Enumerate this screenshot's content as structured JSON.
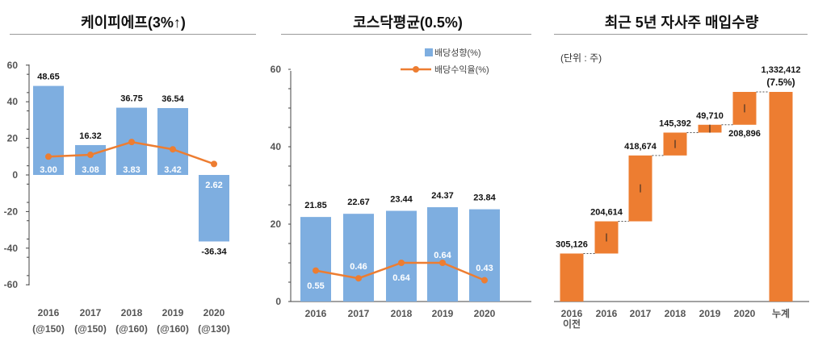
{
  "panels": {
    "kepi": {
      "title": "케이피에프(3%↑)"
    },
    "kosdaq": {
      "title": "코스닥평균(0.5%)"
    },
    "buyback": {
      "title": "최근 5년 자사주 매입수량",
      "unit": "(단위 : 주)"
    }
  },
  "colors": {
    "bar_blue": "#7eaee0",
    "line_orange": "#ed7d31",
    "waterfall_orange": "#ed7d31",
    "axis": "#444444"
  },
  "chart_data": [
    {
      "type": "bar",
      "id": "kepi",
      "title": "케이피에프(3%↑)",
      "categories": [
        "2016",
        "2017",
        "2018",
        "2019",
        "2020"
      ],
      "sublabels": [
        "(@150)",
        "(@150)",
        "(@160)",
        "(@160)",
        "(@130)"
      ],
      "series": [
        {
          "values": [
            48.65,
            16.32,
            36.75,
            36.54,
            -36.34
          ],
          "value_labels": [
            "48.65",
            "16.32",
            "36.75",
            "36.54",
            "-36.34"
          ]
        },
        {
          "kind": "line",
          "values": [
            10,
            11,
            18,
            14,
            6
          ],
          "value_labels": [
            "3.00",
            "3.08",
            "3.83",
            "3.42",
            "2.62"
          ]
        }
      ],
      "yticks": [
        "60",
        "40",
        "20",
        "0",
        "-20",
        "-40",
        "-60"
      ],
      "ylim": [
        -60,
        60
      ],
      "grid": false
    },
    {
      "type": "bar",
      "id": "kosdaq",
      "title": "코스닥평균(0.5%)",
      "categories": [
        "2016",
        "2017",
        "2018",
        "2019",
        "2020"
      ],
      "series": [
        {
          "name": "배당성향(%)",
          "values": [
            21.85,
            22.67,
            23.44,
            24.37,
            23.84
          ],
          "value_labels": [
            "21.85",
            "22.67",
            "23.44",
            "24.37",
            "23.84"
          ]
        },
        {
          "name": "배당수익율(%)",
          "kind": "line",
          "values": [
            8,
            6,
            10,
            10,
            5.5
          ],
          "value_labels": [
            "0.55",
            "0.46",
            "0.64",
            "0.64",
            "0.43"
          ]
        }
      ],
      "yticks": [
        "60",
        "40",
        "20",
        "0"
      ],
      "ylim": [
        0,
        60
      ],
      "legend": "top-right",
      "grid": false
    },
    {
      "type": "waterfall",
      "id": "buyback",
      "title": "최근 5년 자사주 매입수량",
      "categories": [
        "2016\n이전",
        "2016",
        "2017",
        "2018",
        "2019",
        "2020",
        "누계"
      ],
      "values": [
        305126,
        204614,
        418674,
        145392,
        49710,
        208896,
        1332412
      ],
      "value_labels": [
        "305,126",
        "204,614",
        "418,674",
        "145,392",
        "49,710",
        "208,896",
        "1,332,412"
      ],
      "total_note": "(7.5%)",
      "ylim": [
        0,
        1332412
      ]
    }
  ]
}
